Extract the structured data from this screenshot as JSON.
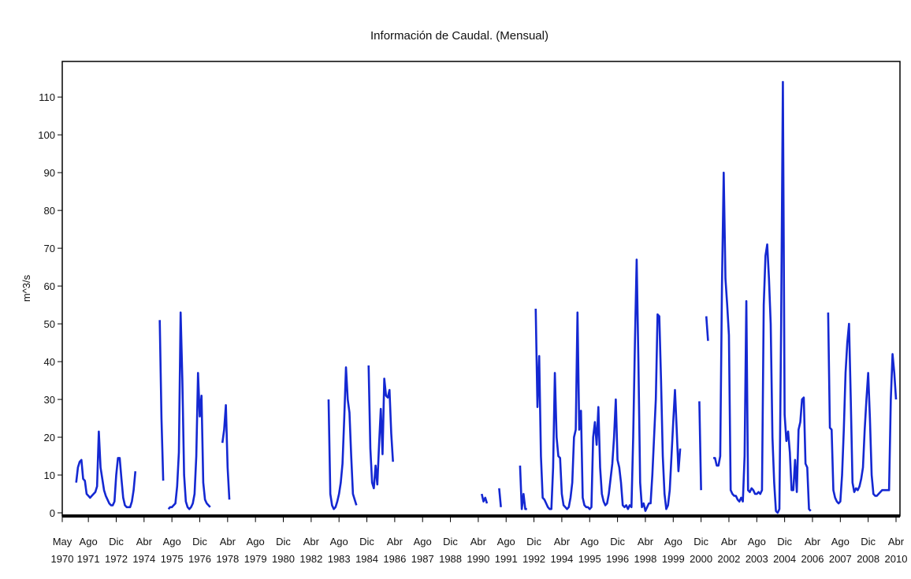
{
  "chart_data": {
    "type": "line",
    "title": "Información de Caudal. (Mensual)",
    "y_label": "m^3/s",
    "xlim": [
      "1970-05",
      "2010-04"
    ],
    "xticks": [
      {
        "value": "1970-05",
        "label": "May 1970"
      },
      {
        "value": "1971-08",
        "label": "Ago 1971"
      },
      {
        "value": "1972-12",
        "label": "Dic 1972"
      },
      {
        "value": "1974-04",
        "label": "Abr 1974"
      },
      {
        "value": "1975-08",
        "label": "Ago 1975"
      },
      {
        "value": "1976-12",
        "label": "Dic 1976"
      },
      {
        "value": "1978-04",
        "label": "Abr 1978"
      },
      {
        "value": "1979-08",
        "label": "Ago 1979"
      },
      {
        "value": "1980-12",
        "label": "Dic 1980"
      },
      {
        "value": "1982-04",
        "label": "Abr 1982"
      },
      {
        "value": "1983-08",
        "label": "Ago 1983"
      },
      {
        "value": "1984-12",
        "label": "Dic 1984"
      },
      {
        "value": "1986-04",
        "label": "Abr 1986"
      },
      {
        "value": "1987-08",
        "label": "Ago 1987"
      },
      {
        "value": "1988-12",
        "label": "Dic 1988"
      },
      {
        "value": "1990-04",
        "label": "Abr 1990"
      },
      {
        "value": "1991-08",
        "label": "Ago 1991"
      },
      {
        "value": "1992-12",
        "label": "Dic 1992"
      },
      {
        "value": "1994-04",
        "label": "Abr 1994"
      },
      {
        "value": "1995-08",
        "label": "Ago 1995"
      },
      {
        "value": "1996-12",
        "label": "Dic 1996"
      },
      {
        "value": "1998-04",
        "label": "Abr 1998"
      },
      {
        "value": "1999-08",
        "label": "Ago 1999"
      },
      {
        "value": "2000-12",
        "label": "Dic 2000"
      },
      {
        "value": "2002-04",
        "label": "Abr 2002"
      },
      {
        "value": "2003-08",
        "label": "Ago 2003"
      },
      {
        "value": "2004-12",
        "label": "Dic 2004"
      },
      {
        "value": "2006-04",
        "label": "Abr 2006"
      },
      {
        "value": "2007-08",
        "label": "Ago 2007"
      },
      {
        "value": "2008-12",
        "label": "Dic 2008"
      },
      {
        "value": "2010-04",
        "label": "Abr 2010"
      }
    ],
    "ylim": [
      -1,
      119
    ],
    "yticks": [
      0,
      10,
      20,
      30,
      40,
      50,
      60,
      70,
      80,
      90,
      100,
      110
    ],
    "grid": false,
    "series": [
      {
        "color": "#1428d2",
        "start": "1971-01",
        "values": [
          8,
          12,
          13.5,
          14,
          9,
          8.5,
          5,
          4.5,
          4,
          4.5,
          5,
          5.5,
          7,
          21.5,
          12,
          9,
          6,
          4.5,
          3.5,
          2.5,
          2,
          2,
          3,
          10,
          14.5,
          14.5,
          9,
          4,
          2,
          1.5,
          1.5,
          1.5,
          3,
          6,
          11
        ]
      },
      {
        "color": "#1428d2",
        "start": "1975-01",
        "values": [
          51,
          25,
          8.5
        ]
      },
      {
        "color": "#1428d2",
        "start": "1975-06",
        "values": [
          1,
          1.5,
          1.5,
          2,
          2.5,
          7,
          16,
          53,
          35,
          10,
          3,
          1.5,
          1,
          1.5,
          2.5,
          5,
          15,
          37,
          25.5,
          31,
          8,
          3.5,
          2.5,
          2,
          1.5
        ]
      },
      {
        "color": "#1428d2",
        "start": "1978-01",
        "values": [
          18.5,
          22,
          28.5,
          12,
          3.5
        ]
      },
      {
        "color": "#1428d2",
        "start": "1983-02",
        "values": [
          30,
          5,
          2,
          1,
          1.5,
          3,
          5,
          8,
          13,
          25,
          38.5,
          30,
          26.5,
          15,
          5,
          3.5,
          2
        ]
      },
      {
        "color": "#1428d2",
        "start": "1985-01",
        "values": [
          39,
          17,
          8,
          6.5,
          12.5,
          7.5,
          18,
          27.5,
          15.5,
          35.5,
          31,
          30.5,
          32.5,
          21,
          13.5
        ]
      },
      {
        "color": "#1428d2",
        "start": "1990-06",
        "values": [
          5,
          3,
          4,
          2.5
        ]
      },
      {
        "color": "#1428d2",
        "start": "1991-04",
        "values": [
          6.5,
          1.5
        ]
      },
      {
        "color": "#1428d2",
        "start": "1992-04",
        "values": [
          12.5,
          1,
          5,
          1,
          1
        ]
      },
      {
        "color": "#1428d2",
        "start": "1993-01",
        "values": [
          54,
          28,
          41.5,
          15,
          4,
          3.5,
          2.5,
          1.5,
          1,
          1,
          12,
          37,
          20,
          15,
          14.5,
          5,
          2,
          1.5,
          1,
          1.5,
          4,
          8,
          20,
          22,
          53,
          22,
          27,
          4,
          2,
          1.5,
          1.5,
          1,
          1.5,
          20,
          24,
          18,
          28,
          12,
          5,
          3,
          2,
          2.5,
          5,
          9,
          13,
          20,
          30,
          14,
          12,
          8,
          2,
          1.5,
          2,
          1,
          2,
          1.5,
          20,
          45,
          67,
          40,
          8,
          1.5,
          2.5,
          0.5,
          1.5,
          2.5,
          2.5,
          10,
          20,
          30,
          52.5,
          52,
          35,
          15,
          5,
          1,
          2,
          6,
          15,
          24,
          32.5,
          22,
          11,
          17
        ]
      },
      {
        "color": "#1428d2",
        "start": "2000-11",
        "values": [
          29.5,
          6
        ]
      },
      {
        "color": "#1428d2",
        "start": "2001-03",
        "values": [
          52,
          45.5
        ]
      },
      {
        "color": "#1428d2",
        "start": "2001-07",
        "values": [
          14.5,
          14.5,
          12.5,
          12.5,
          15,
          60,
          90,
          62,
          55,
          47,
          6,
          5,
          4.5,
          4.5,
          3.5,
          3,
          4,
          3,
          15,
          56,
          6,
          5.5,
          6.5,
          6,
          5,
          5,
          5.5,
          5,
          6,
          55,
          68,
          71,
          62,
          50,
          20,
          8,
          0.5,
          0,
          1,
          50,
          114,
          26,
          19,
          21.5,
          16,
          6,
          6,
          14,
          5.5,
          22,
          24,
          30,
          30.5,
          13,
          12,
          1,
          0.5
        ]
      },
      {
        "color": "#1428d2",
        "start": "2007-01",
        "values": [
          53,
          22.5,
          22,
          6,
          4,
          3,
          2.5,
          3,
          10,
          22,
          37,
          45,
          50,
          30,
          8,
          5.5,
          6.5,
          6,
          7,
          9,
          12,
          22,
          30,
          37,
          25,
          10,
          5,
          4.5,
          4.5,
          5,
          5.5,
          6,
          6,
          6,
          6,
          6,
          30,
          42,
          37,
          30
        ]
      }
    ]
  }
}
